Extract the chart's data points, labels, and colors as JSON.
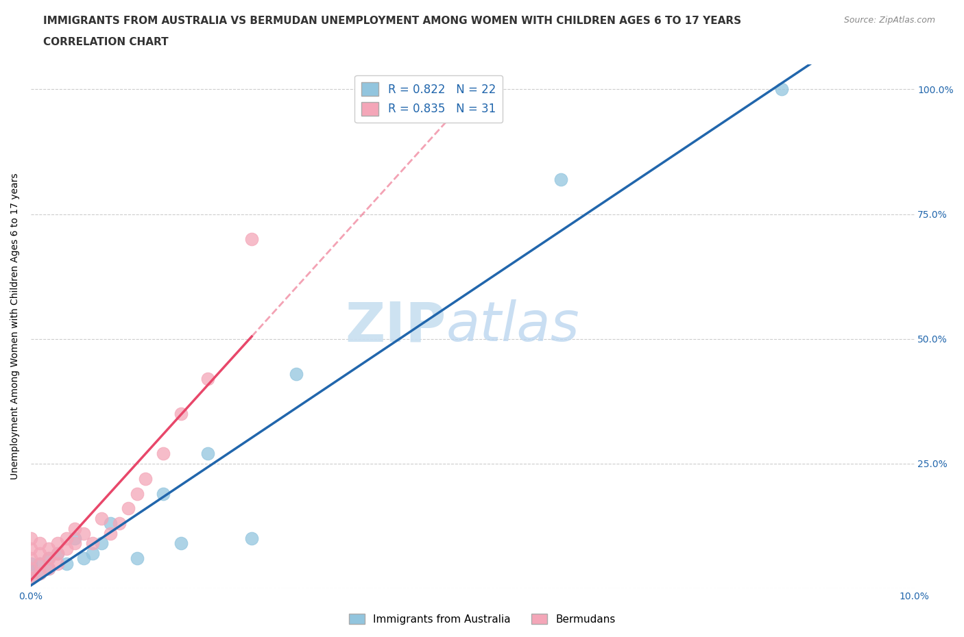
{
  "title_line1": "IMMIGRANTS FROM AUSTRALIA VS BERMUDAN UNEMPLOYMENT AMONG WOMEN WITH CHILDREN AGES 6 TO 17 YEARS",
  "title_line2": "CORRELATION CHART",
  "source_text": "Source: ZipAtlas.com",
  "ylabel": "Unemployment Among Women with Children Ages 6 to 17 years",
  "xlim": [
    0.0,
    0.1
  ],
  "ylim": [
    0.0,
    1.05
  ],
  "legend_label1": "R = 0.822   N = 22",
  "legend_label2": "R = 0.835   N = 31",
  "legend_series1": "Immigrants from Australia",
  "legend_series2": "Bermudans",
  "color_blue": "#92c5de",
  "color_pink": "#f4a6b8",
  "line_color_blue": "#2166ac",
  "line_color_pink": "#e8476a",
  "watermark_zip": "ZIP",
  "watermark_atlas": "atlas",
  "australia_x": [
    0.0,
    0.0,
    0.0,
    0.001,
    0.001,
    0.002,
    0.002,
    0.003,
    0.004,
    0.005,
    0.006,
    0.007,
    0.008,
    0.009,
    0.012,
    0.015,
    0.017,
    0.02,
    0.025,
    0.03,
    0.06,
    0.085
  ],
  "australia_y": [
    0.02,
    0.04,
    0.05,
    0.03,
    0.05,
    0.04,
    0.06,
    0.07,
    0.05,
    0.1,
    0.06,
    0.07,
    0.09,
    0.13,
    0.06,
    0.19,
    0.09,
    0.27,
    0.1,
    0.43,
    0.82,
    1.0
  ],
  "bermuda_x": [
    0.0,
    0.0,
    0.0,
    0.0,
    0.0,
    0.001,
    0.001,
    0.001,
    0.001,
    0.002,
    0.002,
    0.002,
    0.003,
    0.003,
    0.003,
    0.004,
    0.004,
    0.005,
    0.005,
    0.006,
    0.007,
    0.008,
    0.009,
    0.01,
    0.011,
    0.012,
    0.013,
    0.015,
    0.017,
    0.02,
    0.025
  ],
  "bermuda_y": [
    0.02,
    0.04,
    0.06,
    0.08,
    0.1,
    0.03,
    0.05,
    0.07,
    0.09,
    0.04,
    0.06,
    0.08,
    0.05,
    0.07,
    0.09,
    0.08,
    0.1,
    0.09,
    0.12,
    0.11,
    0.09,
    0.14,
    0.11,
    0.13,
    0.16,
    0.19,
    0.22,
    0.27,
    0.35,
    0.42,
    0.7
  ],
  "title_fontsize": 11,
  "label_fontsize": 10,
  "tick_fontsize": 10,
  "source_fontsize": 9,
  "legend_fontsize": 12
}
